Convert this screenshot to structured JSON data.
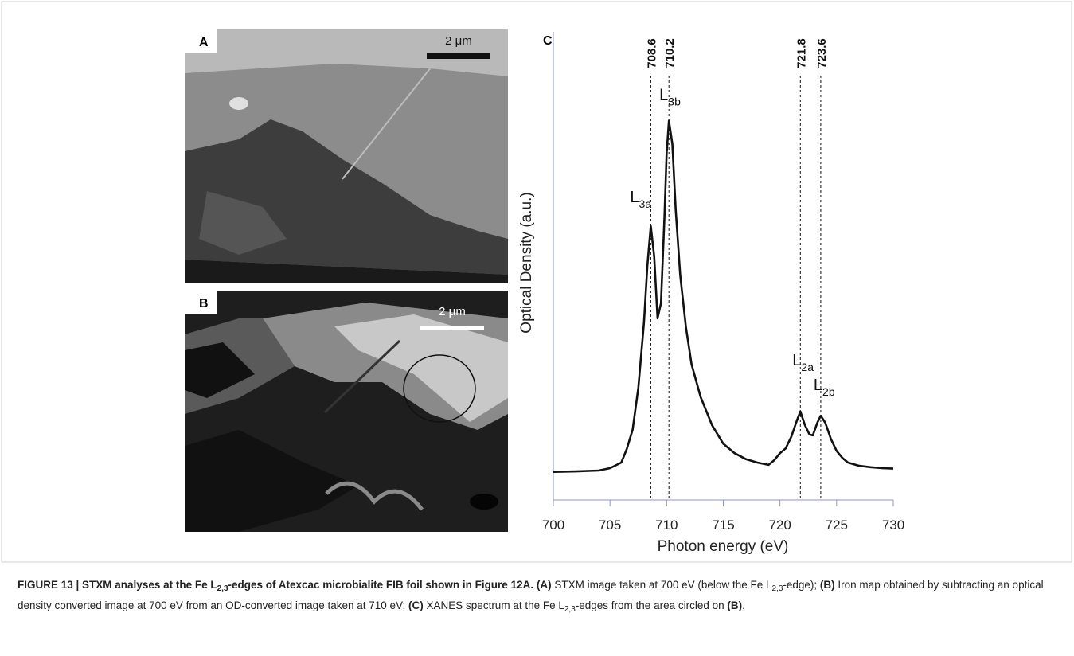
{
  "panels": {
    "a": {
      "letter": "A",
      "scale": "2 μm"
    },
    "b": {
      "letter": "B",
      "scale": "2 μm"
    }
  },
  "chart_data": {
    "type": "line",
    "letter": "C",
    "xlabel": "Photon energy (eV)",
    "ylabel": "Optical Density (a.u.)",
    "x": [
      700,
      702,
      704,
      705,
      706,
      706.5,
      707,
      707.5,
      708,
      708.3,
      708.6,
      708.9,
      709.2,
      709.5,
      709.8,
      710.0,
      710.2,
      710.5,
      710.8,
      711.2,
      711.7,
      712.2,
      713,
      714,
      715,
      716,
      717,
      718,
      719,
      719.5,
      720,
      720.5,
      721,
      721.5,
      721.8,
      722.2,
      722.6,
      722.9,
      723.3,
      723.6,
      724,
      724.5,
      725,
      725.5,
      726,
      727,
      728,
      729,
      730
    ],
    "values": [
      6.0,
      6.1,
      6.3,
      6.8,
      8,
      11,
      15,
      24,
      38,
      50,
      58.5,
      52,
      38.8,
      42,
      60,
      74,
      81,
      76,
      62,
      48,
      37,
      29,
      22,
      16,
      12,
      10,
      8.7,
      8,
      7.5,
      8.5,
      10,
      11,
      13.5,
      17,
      18.9,
      16,
      14,
      13.8,
      16.5,
      18,
      16.5,
      13,
      10.5,
      9,
      8,
      7.3,
      7,
      6.8,
      6.7
    ],
    "color": "#111111",
    "xlim": [
      700,
      730
    ],
    "ylim": [
      0,
      100
    ],
    "xticks": [
      700,
      705,
      710,
      715,
      720,
      725,
      730
    ],
    "vlines": [
      708.6,
      710.2,
      721.8,
      723.6
    ],
    "peaks": [
      {
        "text": "L",
        "sub": "3a"
      },
      {
        "text": "L",
        "sub": "3b"
      },
      {
        "text": "L",
        "sub": "2a"
      },
      {
        "text": "L",
        "sub": "2b"
      }
    ]
  },
  "caption": [
    {
      "text": "FIGURE 13 | STXM analyses at the Fe L",
      "style": "bold"
    },
    {
      "text": "2,3",
      "style": "bold-sub"
    },
    {
      "text": "-edges of Atexcac microbialite FIB foil shown in Figure 12A. (A)",
      "style": "bold"
    },
    {
      "text": " STXM image taken at 700 eV (below the Fe L",
      "style": "plain"
    },
    {
      "text": "2,3",
      "style": "sub"
    },
    {
      "text": "-edge); ",
      "style": "plain"
    },
    {
      "text": "(B)",
      "style": "bold"
    },
    {
      "text": " Iron map obtained by subtracting an optical density converted image at 700 eV from an OD-converted image taken at 710 eV; ",
      "style": "plain"
    },
    {
      "text": "(C)",
      "style": "bold"
    },
    {
      "text": " XANES spectrum at the Fe L",
      "style": "plain"
    },
    {
      "text": "2,3",
      "style": "sub"
    },
    {
      "text": "-edges from the area circled on ",
      "style": "plain"
    },
    {
      "text": "(B)",
      "style": "bold"
    },
    {
      "text": ".",
      "style": "plain"
    }
  ]
}
